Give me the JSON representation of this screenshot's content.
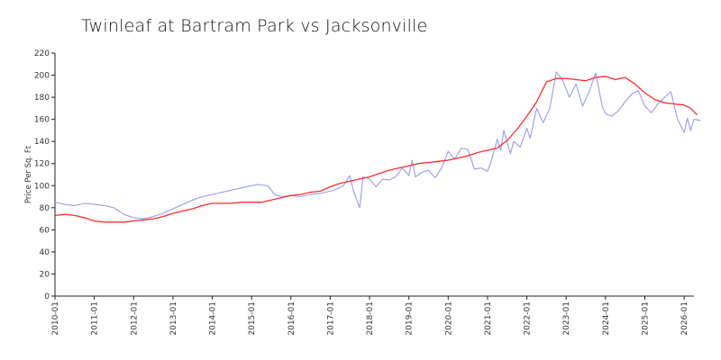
{
  "chart_data": {
    "type": "line",
    "title": "Twinleaf at Bartram Park vs Jacksonville",
    "xlabel": "",
    "ylabel": "Price Per Sq. Ft",
    "ylim": [
      0,
      220
    ],
    "yticks": [
      0,
      20,
      40,
      60,
      80,
      100,
      120,
      140,
      160,
      180,
      200,
      220
    ],
    "xlim": [
      "2010-01",
      "2026-04"
    ],
    "xticks": [
      "2010-01",
      "2011-01",
      "2012-01",
      "2013-01",
      "2014-01",
      "2015-01",
      "2016-01",
      "2017-01",
      "2018-01",
      "2019-01",
      "2020-01",
      "2021-01",
      "2022-01",
      "2023-01",
      "2024-01",
      "2025-01",
      "2026-01"
    ],
    "grid": false,
    "legend": "none",
    "series": [
      {
        "color": "#9a9af0",
        "points": [
          [
            "2010-01",
            85
          ],
          [
            "2010-04",
            83
          ],
          [
            "2010-07",
            82
          ],
          [
            "2010-10",
            84
          ],
          [
            "2011-01",
            83
          ],
          [
            "2011-04",
            82
          ],
          [
            "2011-07",
            80
          ],
          [
            "2011-10",
            74
          ],
          [
            "2012-01",
            71
          ],
          [
            "2012-04",
            70
          ],
          [
            "2012-07",
            72
          ],
          [
            "2012-10",
            75
          ],
          [
            "2013-01",
            79
          ],
          [
            "2013-04",
            83
          ],
          [
            "2013-07",
            87
          ],
          [
            "2013-10",
            90
          ],
          [
            "2014-01",
            92
          ],
          [
            "2014-04",
            94
          ],
          [
            "2014-07",
            96
          ],
          [
            "2014-10",
            98
          ],
          [
            "2015-01",
            100
          ],
          [
            "2015-03",
            101
          ],
          [
            "2015-06",
            100
          ],
          [
            "2015-08",
            92
          ],
          [
            "2015-10",
            90
          ],
          [
            "2016-01",
            91
          ],
          [
            "2016-04",
            90
          ],
          [
            "2016-07",
            92
          ],
          [
            "2016-10",
            93
          ],
          [
            "2017-01",
            95
          ],
          [
            "2017-03",
            97
          ],
          [
            "2017-05",
            100
          ],
          [
            "2017-07",
            109
          ],
          [
            "2017-08",
            96
          ],
          [
            "2017-10",
            80
          ],
          [
            "2017-11",
            108
          ],
          [
            "2018-01",
            106
          ],
          [
            "2018-03",
            99
          ],
          [
            "2018-05",
            106
          ],
          [
            "2018-07",
            105
          ],
          [
            "2018-09",
            108
          ],
          [
            "2018-11",
            116
          ],
          [
            "2019-01",
            109
          ],
          [
            "2019-02",
            123
          ],
          [
            "2019-03",
            108
          ],
          [
            "2019-05",
            112
          ],
          [
            "2019-07",
            114
          ],
          [
            "2019-09",
            107
          ],
          [
            "2019-11",
            116
          ],
          [
            "2020-01",
            131
          ],
          [
            "2020-03",
            124
          ],
          [
            "2020-05",
            134
          ],
          [
            "2020-07",
            133
          ],
          [
            "2020-09",
            115
          ],
          [
            "2020-11",
            116
          ],
          [
            "2021-01",
            113
          ],
          [
            "2021-02",
            121
          ],
          [
            "2021-04",
            142
          ],
          [
            "2021-05",
            132
          ],
          [
            "2021-06",
            150
          ],
          [
            "2021-08",
            129
          ],
          [
            "2021-09",
            140
          ],
          [
            "2021-11",
            135
          ],
          [
            "2022-01",
            152
          ],
          [
            "2022-02",
            143
          ],
          [
            "2022-04",
            170
          ],
          [
            "2022-06",
            157
          ],
          [
            "2022-08",
            170
          ],
          [
            "2022-10",
            203
          ],
          [
            "2022-12",
            195
          ],
          [
            "2023-02",
            180
          ],
          [
            "2023-04",
            192
          ],
          [
            "2023-06",
            172
          ],
          [
            "2023-08",
            185
          ],
          [
            "2023-10",
            202
          ],
          [
            "2023-12",
            172
          ],
          [
            "2024-01",
            165
          ],
          [
            "2024-03",
            163
          ],
          [
            "2024-05",
            168
          ],
          [
            "2024-07",
            176
          ],
          [
            "2024-09",
            183
          ],
          [
            "2024-11",
            186
          ],
          [
            "2025-01",
            172
          ],
          [
            "2025-03",
            166
          ],
          [
            "2025-05",
            174
          ],
          [
            "2025-07",
            180
          ],
          [
            "2025-09",
            185
          ],
          [
            "2025-11",
            160
          ],
          [
            "2026-01",
            148
          ],
          [
            "2026-02",
            161
          ],
          [
            "2026-03",
            150
          ],
          [
            "2026-04",
            160
          ],
          [
            "2026-06",
            159
          ]
        ]
      },
      {
        "color": "#ff2a2a",
        "points": [
          [
            "2010-01",
            73
          ],
          [
            "2010-04",
            74
          ],
          [
            "2010-07",
            73
          ],
          [
            "2010-10",
            71
          ],
          [
            "2011-01",
            68
          ],
          [
            "2011-04",
            67
          ],
          [
            "2011-07",
            67
          ],
          [
            "2011-10",
            67
          ],
          [
            "2012-01",
            68
          ],
          [
            "2012-04",
            69
          ],
          [
            "2012-07",
            70
          ],
          [
            "2012-10",
            72
          ],
          [
            "2013-01",
            75
          ],
          [
            "2013-04",
            77
          ],
          [
            "2013-07",
            79
          ],
          [
            "2013-10",
            82
          ],
          [
            "2014-01",
            84
          ],
          [
            "2014-04",
            84
          ],
          [
            "2014-07",
            84
          ],
          [
            "2014-10",
            85
          ],
          [
            "2015-01",
            85
          ],
          [
            "2015-04",
            85
          ],
          [
            "2015-07",
            87
          ],
          [
            "2015-10",
            89
          ],
          [
            "2016-01",
            91
          ],
          [
            "2016-04",
            92
          ],
          [
            "2016-07",
            94
          ],
          [
            "2016-10",
            95
          ],
          [
            "2017-01",
            99
          ],
          [
            "2017-04",
            102
          ],
          [
            "2017-07",
            104
          ],
          [
            "2017-10",
            106
          ],
          [
            "2018-01",
            108
          ],
          [
            "2018-04",
            111
          ],
          [
            "2018-07",
            114
          ],
          [
            "2018-10",
            116
          ],
          [
            "2019-01",
            118
          ],
          [
            "2019-04",
            120
          ],
          [
            "2019-07",
            121
          ],
          [
            "2019-10",
            122
          ],
          [
            "2020-01",
            123
          ],
          [
            "2020-04",
            125
          ],
          [
            "2020-07",
            127
          ],
          [
            "2020-10",
            130
          ],
          [
            "2021-01",
            132
          ],
          [
            "2021-04",
            134
          ],
          [
            "2021-07",
            141
          ],
          [
            "2021-10",
            151
          ],
          [
            "2022-01",
            163
          ],
          [
            "2022-04",
            176
          ],
          [
            "2022-07",
            194
          ],
          [
            "2022-10",
            197
          ],
          [
            "2023-01",
            197
          ],
          [
            "2023-04",
            196
          ],
          [
            "2023-07",
            195
          ],
          [
            "2023-10",
            198
          ],
          [
            "2024-01",
            199
          ],
          [
            "2024-04",
            196
          ],
          [
            "2024-07",
            198
          ],
          [
            "2024-10",
            192
          ],
          [
            "2025-01",
            184
          ],
          [
            "2025-04",
            178
          ],
          [
            "2025-07",
            175
          ],
          [
            "2025-10",
            174
          ],
          [
            "2026-01",
            173
          ],
          [
            "2026-03",
            170
          ],
          [
            "2026-05",
            164
          ]
        ]
      }
    ]
  }
}
